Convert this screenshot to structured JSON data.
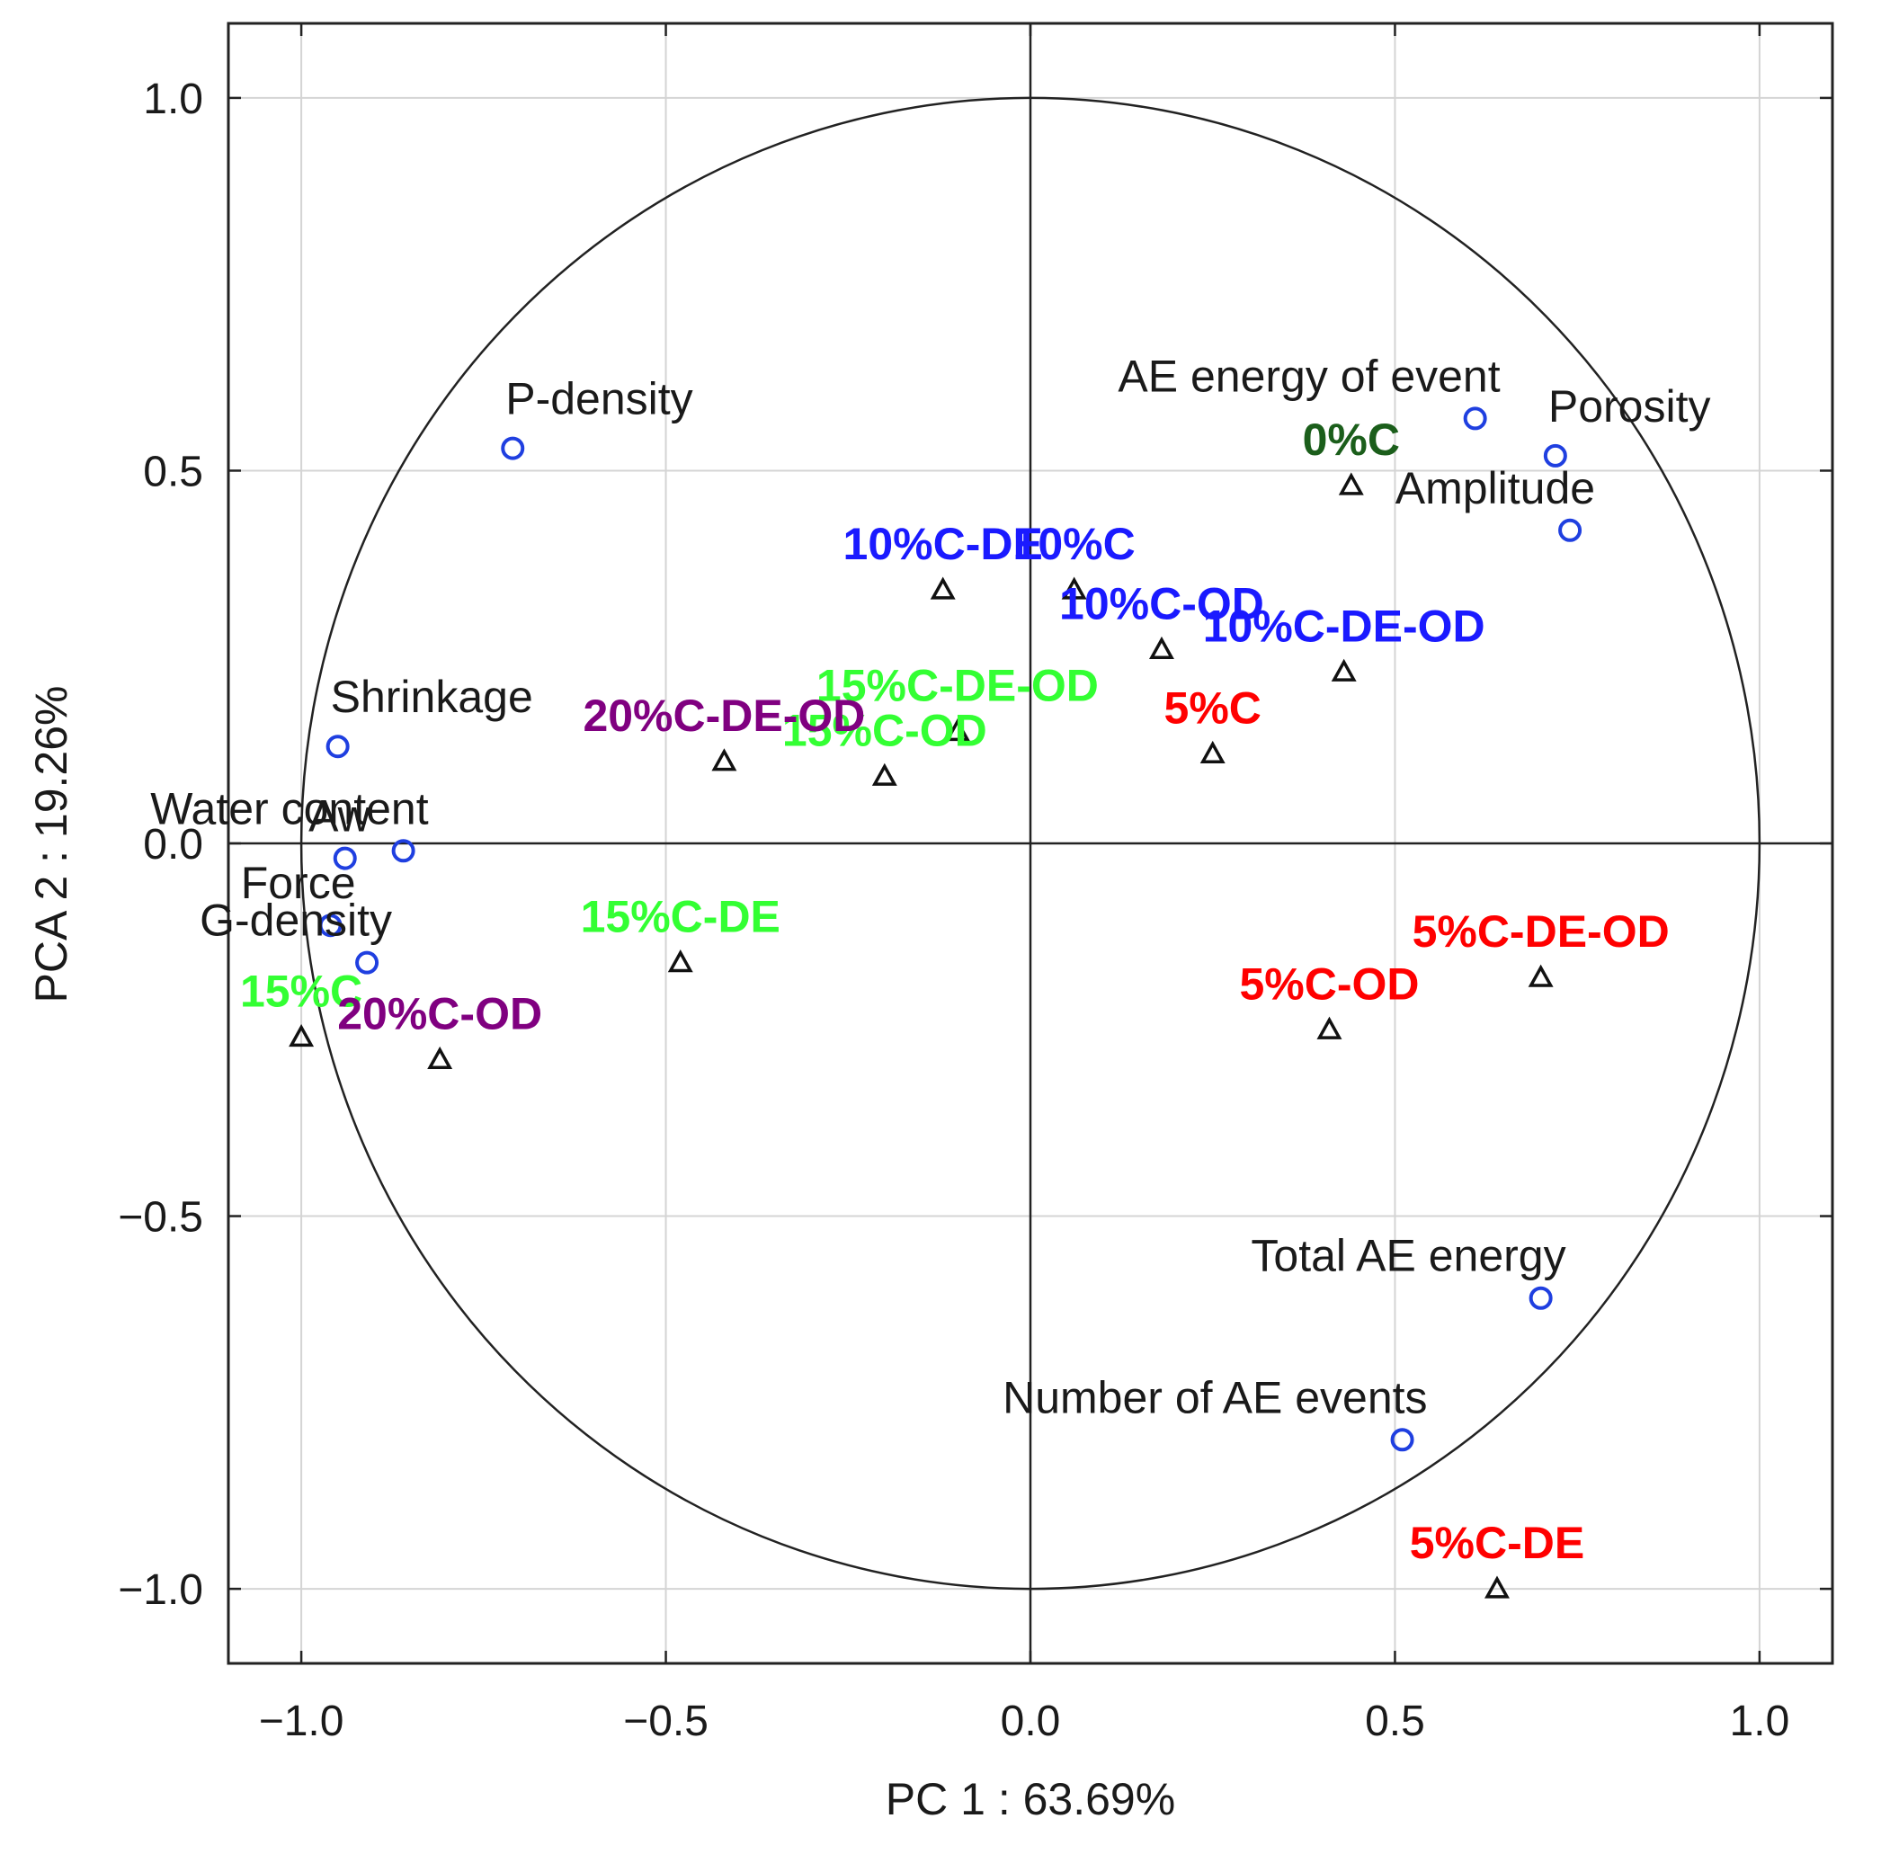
{
  "chart_data": {
    "type": "scatter",
    "title": "",
    "xlabel": "PC 1 : 63.69%",
    "ylabel": "PCA 2 : 19.26%",
    "xlim": [
      -1.1,
      1.1
    ],
    "ylim": [
      -1.1,
      1.1
    ],
    "xticks": [
      -1.0,
      -0.5,
      0.0,
      0.5,
      1.0
    ],
    "yticks": [
      -1.0,
      -0.5,
      0.0,
      0.5,
      1.0
    ],
    "xtick_labels": [
      "−1.0",
      "−0.5",
      "0.0",
      "0.5",
      "1.0"
    ],
    "ytick_labels": [
      "−1.0",
      "−0.5",
      "0.0",
      "0.5",
      "1.0"
    ],
    "grid": true,
    "unit_circle": true,
    "colors": {
      "variable_marker": "#1f3fe0",
      "sample_marker": "#111111",
      "axis": "#222222",
      "grid": "#d4d4d4"
    },
    "variables": [
      {
        "name": "P-density",
        "x": -0.71,
        "y": 0.53,
        "label_anchor": "above-right"
      },
      {
        "name": "AE energy of event",
        "x": 0.61,
        "y": 0.57,
        "label_anchor": "above-left"
      },
      {
        "name": "Porosity",
        "x": 0.72,
        "y": 0.52,
        "label_anchor": "above-right"
      },
      {
        "name": "Amplitude",
        "x": 0.74,
        "y": 0.42,
        "label_anchor": "above-left"
      },
      {
        "name": "Shrinkage",
        "x": -0.95,
        "y": 0.13,
        "label_anchor": "above-right"
      },
      {
        "name": "Water content",
        "x": -0.86,
        "y": -0.01,
        "label_anchor": "above-left"
      },
      {
        "name": "Aw",
        "x": -0.94,
        "y": -0.02,
        "label_anchor": "above-left"
      },
      {
        "name": "Force",
        "x": -0.96,
        "y": -0.11,
        "label_anchor": "above-left"
      },
      {
        "name": "G-density",
        "x": -0.91,
        "y": -0.16,
        "label_anchor": "above-left"
      },
      {
        "name": "Total AE energy",
        "x": 0.7,
        "y": -0.61,
        "label_anchor": "above-left"
      },
      {
        "name": "Number of AE events",
        "x": 0.51,
        "y": -0.8,
        "label_anchor": "above-left"
      }
    ],
    "samples": [
      {
        "name": "0%C",
        "x": 0.44,
        "y": 0.48,
        "color": "#1b5e1b"
      },
      {
        "name": "5%C",
        "x": 0.25,
        "y": 0.12,
        "color": "#ff0000"
      },
      {
        "name": "5%C-OD",
        "x": 0.41,
        "y": -0.25,
        "color": "#ff0000"
      },
      {
        "name": "5%C-DE-OD",
        "x": 0.7,
        "y": -0.18,
        "color": "#ff0000"
      },
      {
        "name": "5%C-DE",
        "x": 0.64,
        "y": -1.0,
        "color": "#ff0000"
      },
      {
        "name": "10%C-DE",
        "x": -0.12,
        "y": 0.34,
        "color": "#1a1aff"
      },
      {
        "name": "10%C",
        "x": 0.06,
        "y": 0.34,
        "color": "#1a1aff"
      },
      {
        "name": "10%C-OD",
        "x": 0.18,
        "y": 0.26,
        "color": "#1a1aff"
      },
      {
        "name": "10%C-DE-OD",
        "x": 0.43,
        "y": 0.23,
        "color": "#1a1aff"
      },
      {
        "name": "15%C-DE-OD",
        "x": -0.1,
        "y": 0.15,
        "color": "#33ff33"
      },
      {
        "name": "15%C-OD",
        "x": -0.2,
        "y": 0.09,
        "color": "#33ff33"
      },
      {
        "name": "15%C-DE",
        "x": -0.48,
        "y": -0.16,
        "color": "#33ff33"
      },
      {
        "name": "15%C",
        "x": -1.0,
        "y": -0.26,
        "color": "#33ff33"
      },
      {
        "name": "20%C-DE-OD",
        "x": -0.42,
        "y": 0.11,
        "color": "#800080"
      },
      {
        "name": "20%C-OD",
        "x": -0.81,
        "y": -0.29,
        "color": "#800080"
      }
    ]
  }
}
